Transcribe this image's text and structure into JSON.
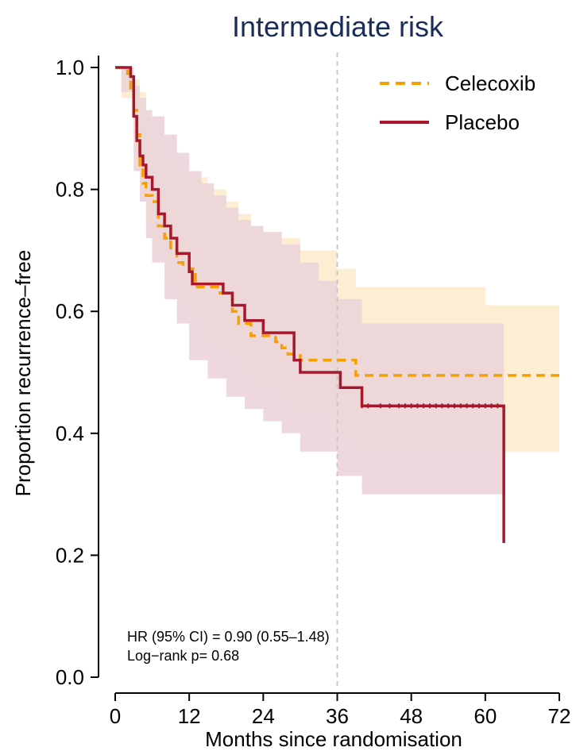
{
  "chart_data": {
    "type": "line",
    "title": "Intermediate risk",
    "xlabel": "Months since randomisation",
    "ylabel": "Proportion recurrence–free",
    "xlim": [
      0,
      72
    ],
    "ylim": [
      0,
      1
    ],
    "x_ticks": [
      0,
      12,
      24,
      36,
      48,
      60,
      72
    ],
    "y_ticks": [
      0.0,
      0.2,
      0.4,
      0.6,
      0.8,
      1.0
    ],
    "y_tick_labels": [
      "0.0",
      "0.2",
      "0.4",
      "0.6",
      "0.8",
      "1.0"
    ],
    "grid": false,
    "reference_line_x": 36,
    "legend_position": "top-right",
    "series": [
      {
        "name": "Celecoxib",
        "color": "#f5a000",
        "style": "dashed",
        "steps": [
          [
            0,
            1.0
          ],
          [
            2,
            0.99
          ],
          [
            2.5,
            0.96
          ],
          [
            3,
            0.93
          ],
          [
            3.5,
            0.89
          ],
          [
            4,
            0.84
          ],
          [
            4.5,
            0.81
          ],
          [
            5,
            0.79
          ],
          [
            6,
            0.78
          ],
          [
            7,
            0.74
          ],
          [
            8,
            0.72
          ],
          [
            9,
            0.7
          ],
          [
            10,
            0.68
          ],
          [
            11,
            0.675
          ],
          [
            12,
            0.67
          ],
          [
            13,
            0.64
          ],
          [
            15,
            0.64
          ],
          [
            17,
            0.63
          ],
          [
            19,
            0.6
          ],
          [
            20,
            0.58
          ],
          [
            22,
            0.56
          ],
          [
            24,
            0.56
          ],
          [
            26,
            0.55
          ],
          [
            27,
            0.54
          ],
          [
            28,
            0.53
          ],
          [
            30,
            0.52
          ],
          [
            36,
            0.52
          ],
          [
            39,
            0.495
          ],
          [
            72,
            0.495
          ]
        ],
        "ci_upper": [
          [
            0,
            1.0
          ],
          [
            1,
            1.0
          ],
          [
            3,
            0.98
          ],
          [
            4,
            0.96
          ],
          [
            5,
            0.92
          ],
          [
            6,
            0.88
          ],
          [
            8,
            0.85
          ],
          [
            10,
            0.83
          ],
          [
            12,
            0.82
          ],
          [
            15,
            0.8
          ],
          [
            18,
            0.78
          ],
          [
            20,
            0.76
          ],
          [
            22,
            0.74
          ],
          [
            24,
            0.73
          ],
          [
            27,
            0.72
          ],
          [
            30,
            0.7
          ],
          [
            36,
            0.67
          ],
          [
            39,
            0.64
          ],
          [
            60,
            0.61
          ],
          [
            72,
            0.61
          ]
        ],
        "ci_lower": [
          [
            0,
            1.0
          ],
          [
            1,
            0.95
          ],
          [
            3,
            0.86
          ],
          [
            4,
            0.8
          ],
          [
            5,
            0.74
          ],
          [
            6,
            0.7
          ],
          [
            8,
            0.65
          ],
          [
            10,
            0.62
          ],
          [
            12,
            0.59
          ],
          [
            15,
            0.55
          ],
          [
            18,
            0.53
          ],
          [
            21,
            0.5
          ],
          [
            24,
            0.48
          ],
          [
            27,
            0.46
          ],
          [
            30,
            0.44
          ],
          [
            36,
            0.4
          ],
          [
            39,
            0.38
          ],
          [
            60,
            0.37
          ],
          [
            72,
            0.37
          ]
        ]
      },
      {
        "name": "Placebo",
        "color": "#a8182c",
        "style": "solid",
        "steps": [
          [
            0,
            1.0
          ],
          [
            1,
            1.0
          ],
          [
            2.5,
            0.985
          ],
          [
            3,
            0.92
          ],
          [
            3.5,
            0.88
          ],
          [
            4,
            0.855
          ],
          [
            4.5,
            0.84
          ],
          [
            5,
            0.82
          ],
          [
            6,
            0.8
          ],
          [
            7,
            0.76
          ],
          [
            8,
            0.74
          ],
          [
            9,
            0.72
          ],
          [
            10,
            0.695
          ],
          [
            12,
            0.665
          ],
          [
            12.5,
            0.645
          ],
          [
            17,
            0.645
          ],
          [
            17.5,
            0.63
          ],
          [
            19,
            0.61
          ],
          [
            21,
            0.585
          ],
          [
            24,
            0.565
          ],
          [
            29,
            0.52
          ],
          [
            30,
            0.5
          ],
          [
            36,
            0.5
          ],
          [
            36.5,
            0.475
          ],
          [
            40,
            0.445
          ],
          [
            63,
            0.445
          ],
          [
            63,
            0.22
          ]
        ],
        "ci_upper": [
          [
            0,
            1.0
          ],
          [
            1,
            1.0
          ],
          [
            3,
            0.97
          ],
          [
            4,
            0.95
          ],
          [
            5,
            0.93
          ],
          [
            6,
            0.92
          ],
          [
            8,
            0.89
          ],
          [
            10,
            0.86
          ],
          [
            12,
            0.83
          ],
          [
            14,
            0.81
          ],
          [
            16,
            0.79
          ],
          [
            18,
            0.77
          ],
          [
            20,
            0.75
          ],
          [
            22,
            0.74
          ],
          [
            24,
            0.73
          ],
          [
            27,
            0.71
          ],
          [
            30,
            0.68
          ],
          [
            33,
            0.65
          ],
          [
            36,
            0.62
          ],
          [
            40,
            0.58
          ],
          [
            63,
            0.58
          ]
        ],
        "ci_lower": [
          [
            0,
            1.0
          ],
          [
            1,
            0.96
          ],
          [
            3,
            0.83
          ],
          [
            4,
            0.78
          ],
          [
            5,
            0.72
          ],
          [
            6,
            0.68
          ],
          [
            8,
            0.62
          ],
          [
            10,
            0.58
          ],
          [
            12,
            0.52
          ],
          [
            15,
            0.49
          ],
          [
            18,
            0.46
          ],
          [
            21,
            0.44
          ],
          [
            24,
            0.42
          ],
          [
            27,
            0.4
          ],
          [
            30,
            0.37
          ],
          [
            36,
            0.33
          ],
          [
            40,
            0.3
          ],
          [
            63,
            0.3
          ]
        ]
      }
    ],
    "censor_marks_placebo": [
      40,
      41,
      43,
      44.5,
      46,
      47,
      48,
      49,
      50,
      51,
      52,
      53,
      54,
      55,
      56,
      57,
      58,
      59,
      60,
      61,
      62
    ],
    "annotations": [
      "HR (95% CI) = 0.90 (0.55–1.48)",
      "Log−rank p= 0.68"
    ]
  },
  "colors": {
    "celecoxib_ci": "#fdedd2",
    "placebo_ci": "#ecd4d9",
    "ref_line": "#c8c8c8",
    "title": "#1a2d5a"
  }
}
